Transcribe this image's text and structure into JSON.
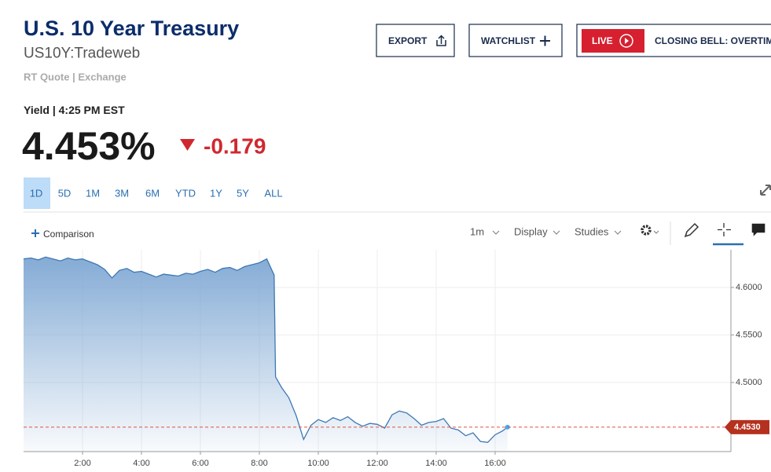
{
  "header": {
    "title": "U.S. 10 Year Treasury",
    "symbol": "US10Y:Tradeweb",
    "quote_type": "RT Quote | Exchange"
  },
  "buttons": {
    "export": "EXPORT",
    "watchlist": "WATCHLIST",
    "live": "LIVE",
    "live_show": "CLOSING BELL: OVERTIME"
  },
  "quote": {
    "label": "Yield | 4:25 PM EST",
    "price": "4.453%",
    "change": "-0.179"
  },
  "ranges": [
    "1D",
    "5D",
    "1M",
    "3M",
    "6M",
    "YTD",
    "1Y",
    "5Y",
    "ALL"
  ],
  "toolbar": {
    "comparison": "Comparison",
    "interval": "1m",
    "display": "Display",
    "studies": "Studies"
  },
  "chart_data": {
    "type": "area",
    "line_color": "#3d78b3",
    "fill_color": "#7ea7d3",
    "xlim": [
      0,
      24
    ],
    "ylim": [
      4.4273,
      4.6397
    ],
    "xticks": [
      {
        "value": 2,
        "label": "2:00"
      },
      {
        "value": 4,
        "label": "4:00"
      },
      {
        "value": 6,
        "label": "6:00"
      },
      {
        "value": 8,
        "label": "8:00"
      },
      {
        "value": 10,
        "label": "10:00"
      },
      {
        "value": 12,
        "label": "12:00"
      },
      {
        "value": 14,
        "label": "14:00"
      },
      {
        "value": 16,
        "label": "16:00"
      }
    ],
    "yticks": [
      {
        "value": 4.5,
        "label": "4.5000"
      },
      {
        "value": 4.55,
        "label": "4.5500"
      },
      {
        "value": 4.6,
        "label": "4.6000"
      }
    ],
    "grid": true,
    "reference_line": {
      "value": 4.453,
      "label": "4.4530",
      "color": "#e0523f"
    },
    "x": [
      0,
      0.25,
      0.5,
      0.75,
      1,
      1.25,
      1.5,
      1.75,
      2,
      2.25,
      2.5,
      2.75,
      3,
      3.25,
      3.5,
      3.75,
      4,
      4.25,
      4.5,
      4.75,
      5,
      5.25,
      5.5,
      5.75,
      6,
      6.25,
      6.5,
      6.75,
      7,
      7.25,
      7.5,
      7.75,
      8,
      8.25,
      8.5,
      8.55,
      8.75,
      9,
      9.25,
      9.5,
      9.75,
      10,
      10.25,
      10.5,
      10.75,
      11,
      11.25,
      11.5,
      11.75,
      12,
      12.25,
      12.5,
      12.75,
      13,
      13.25,
      13.5,
      13.75,
      14,
      14.25,
      14.5,
      14.75,
      15,
      15.25,
      15.5,
      15.75,
      16,
      16.25,
      16.42
    ],
    "values": [
      4.63,
      4.631,
      4.629,
      4.632,
      4.63,
      4.628,
      4.631,
      4.629,
      4.63,
      4.627,
      4.624,
      4.619,
      4.61,
      4.618,
      4.62,
      4.616,
      4.617,
      4.614,
      4.611,
      4.614,
      4.613,
      4.612,
      4.615,
      4.614,
      4.617,
      4.619,
      4.616,
      4.62,
      4.621,
      4.618,
      4.622,
      4.624,
      4.626,
      4.63,
      4.613,
      4.506,
      4.495,
      4.484,
      4.465,
      4.44,
      4.455,
      4.461,
      4.458,
      4.463,
      4.46,
      4.464,
      4.458,
      4.454,
      4.457,
      4.456,
      4.452,
      4.466,
      4.47,
      4.468,
      4.462,
      4.455,
      4.458,
      4.459,
      4.462,
      4.452,
      4.45,
      4.444,
      4.447,
      4.438,
      4.437,
      4.445,
      4.449,
      4.453
    ]
  }
}
